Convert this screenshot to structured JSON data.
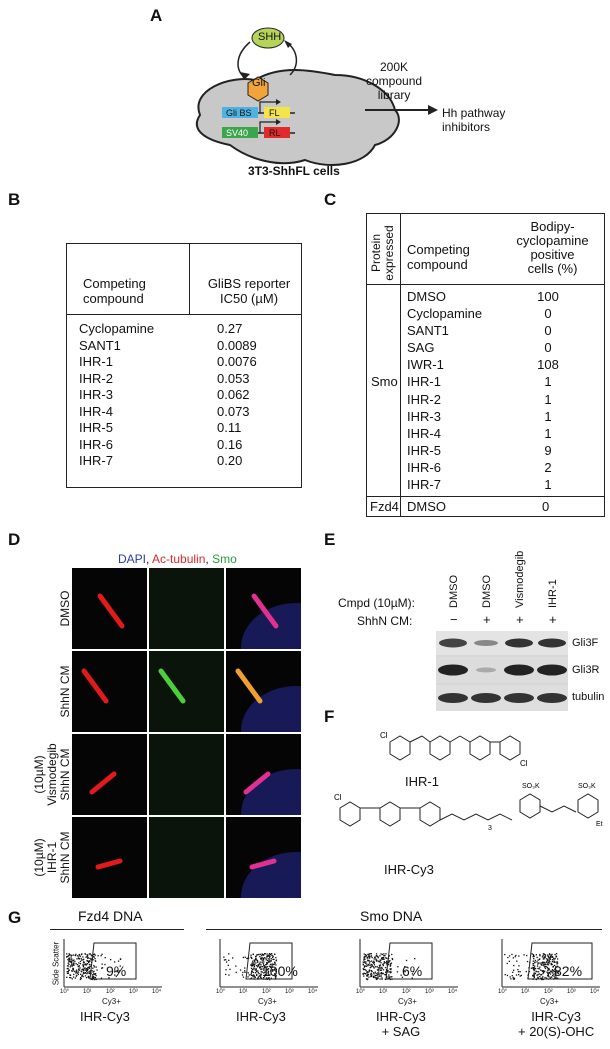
{
  "panels": {
    "A": {
      "label": "A",
      "shh": "SHH",
      "gli": "Gli",
      "glibs": "Gli BS",
      "fl": "FL",
      "sv40": "SV40",
      "rl": "RL",
      "library": [
        "200K",
        "compound",
        "library"
      ],
      "output": "Hh pathway",
      "output2": "inhibitors",
      "cells": "3T3-ShhFL cells"
    },
    "B": {
      "label": "B",
      "header1": [
        "Competing",
        "compound"
      ],
      "header2": [
        "GliBS reporter",
        "IC50 (µM)"
      ],
      "rows": [
        {
          "name": "Cyclopamine",
          "value": "0.27"
        },
        {
          "name": "SANT1",
          "value": "0.0089"
        },
        {
          "name": "IHR-1",
          "value": "0.0076"
        },
        {
          "name": "IHR-2",
          "value": "0.053"
        },
        {
          "name": "IHR-3",
          "value": "0.062"
        },
        {
          "name": "IHR-4",
          "value": "0.073"
        },
        {
          "name": "IHR-5",
          "value": "0.11"
        },
        {
          "name": "IHR-6",
          "value": "0.16"
        },
        {
          "name": "IHR-7",
          "value": "0.20"
        }
      ]
    },
    "C": {
      "label": "C",
      "header0": [
        "Protein",
        "expressed"
      ],
      "header1": [
        "Competing",
        "compound"
      ],
      "header2": [
        "Bodipy-",
        "cyclopamine",
        "positive",
        "cells (%)"
      ],
      "group1": "Smo",
      "rows": [
        {
          "name": "DMSO",
          "value": "100"
        },
        {
          "name": "Cyclopamine",
          "value": "0"
        },
        {
          "name": "SANT1",
          "value": "0"
        },
        {
          "name": "SAG",
          "value": "0"
        },
        {
          "name": "IWR-1",
          "value": "108"
        },
        {
          "name": "IHR-1",
          "value": "1"
        },
        {
          "name": "IHR-2",
          "value": "1"
        },
        {
          "name": "IHR-3",
          "value": "1"
        },
        {
          "name": "IHR-4",
          "value": "1"
        },
        {
          "name": "IHR-5",
          "value": "9"
        },
        {
          "name": "IHR-6",
          "value": "2"
        },
        {
          "name": "IHR-7",
          "value": "1"
        }
      ],
      "group2": "Fzd4",
      "group2_row": {
        "name": "DMSO",
        "value": "0"
      }
    },
    "D": {
      "label": "D",
      "legend_dapi": "DAPI",
      "legend_sep1": ", ",
      "legend_ac": "Ac-tubulin",
      "legend_sep2": ", ",
      "legend_smo": "Smo",
      "rows": [
        {
          "line1": "DMSO",
          "line2": "",
          "line3": ""
        },
        {
          "line1": "ShhN CM",
          "line2": "",
          "line3": ""
        },
        {
          "line1": "(10µM)",
          "line2": "Vismodegib",
          "line3": "ShhN CM"
        },
        {
          "line1": "(10µM)",
          "line2": "IHR-1",
          "line3": "ShhN CM"
        }
      ]
    },
    "E": {
      "label": "E",
      "cmpd": "Cmpd (10µM):",
      "shhn": "ShhN CM:",
      "lanes": [
        {
          "name": "DMSO",
          "shh": "−"
        },
        {
          "name": "DMSO",
          "shh": "+"
        },
        {
          "name": "Vismodegib",
          "shh": "+"
        },
        {
          "name": "IHR-1",
          "shh": "+"
        }
      ],
      "bands": [
        "Gli3F",
        "Gli3R",
        "tubulin"
      ]
    },
    "F": {
      "label": "F",
      "mol1": "IHR-1",
      "mol2": "IHR-Cy3",
      "so3k": "SO₃K",
      "et": "Et",
      "n3": "3"
    },
    "G": {
      "label": "G",
      "group1": "Fzd4 DNA",
      "group2": "Smo DNA",
      "ylabel": "Side Scatter",
      "xlabel": "Cy3+",
      "ticks": [
        "10°",
        "10¹",
        "10²",
        "10³",
        "10⁴"
      ],
      "plots": [
        {
          "pct": "9%",
          "caption1": "IHR-Cy3",
          "caption2": ""
        },
        {
          "pct": "100%",
          "caption1": "IHR-Cy3",
          "caption2": ""
        },
        {
          "pct": "6%",
          "caption1": "IHR-Cy3",
          "caption2": "+ SAG"
        },
        {
          "pct": "82%",
          "caption1": "IHR-Cy3",
          "caption2": "+ 20(S)-OHC"
        }
      ]
    }
  }
}
